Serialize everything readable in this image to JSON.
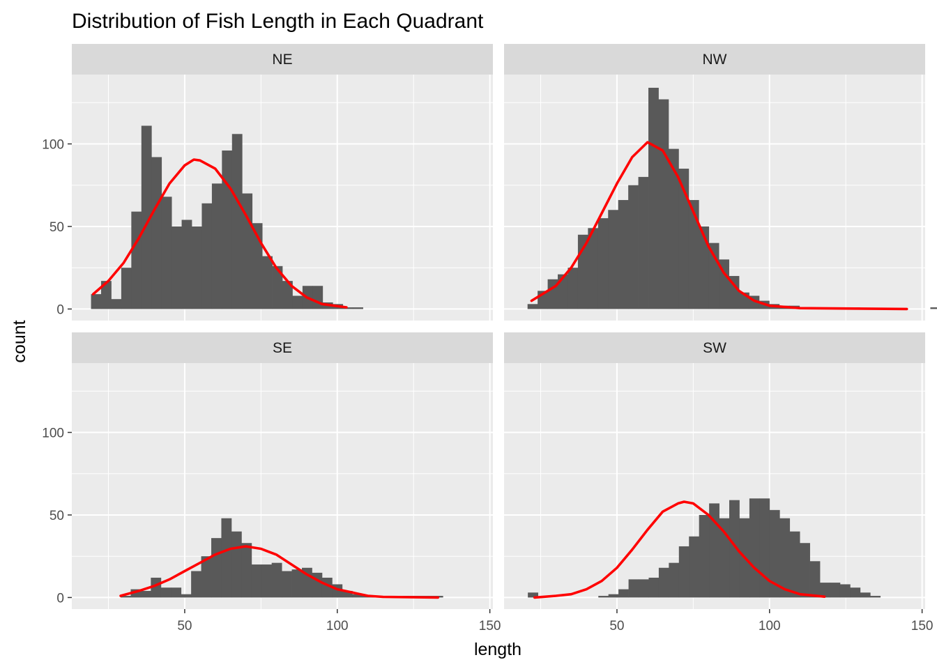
{
  "chart_data": {
    "type": "histogram",
    "title": "Distribution of Fish Length in Each Quadrant",
    "xlabel": "length",
    "ylabel": "count",
    "xlim": [
      13,
      151
    ],
    "ylim": [
      -7,
      142
    ],
    "x_ticks": [
      50,
      100,
      150
    ],
    "x_tick_labels": [
      "50",
      "100",
      "150"
    ],
    "y_ticks": [
      0,
      50,
      100
    ],
    "y_tick_labels": [
      "0",
      "50",
      "100"
    ],
    "bin_width": 3.3,
    "colors": {
      "panel_background": "#ebebeb",
      "strip_background": "#d9d9d9",
      "bar": "#595959",
      "curve": "#ff0000",
      "grid": "#ffffff"
    },
    "facets": [
      {
        "label": "NE",
        "bin_start": 19.3,
        "counts": [
          9,
          17,
          6,
          25,
          59,
          111,
          92,
          68,
          50,
          54,
          50,
          64,
          76,
          96,
          106,
          70,
          52,
          32,
          26,
          17,
          8,
          14,
          14,
          4,
          3,
          1,
          1
        ],
        "curve": [
          [
            20,
            9
          ],
          [
            25,
            17
          ],
          [
            30,
            28
          ],
          [
            35,
            43
          ],
          [
            40,
            60
          ],
          [
            45,
            76
          ],
          [
            50,
            87
          ],
          [
            53,
            90.5
          ],
          [
            55,
            90
          ],
          [
            60,
            85
          ],
          [
            65,
            73
          ],
          [
            70,
            57
          ],
          [
            75,
            40
          ],
          [
            80,
            25
          ],
          [
            85,
            14
          ],
          [
            90,
            7
          ],
          [
            95,
            3
          ],
          [
            103,
            1
          ]
        ]
      },
      {
        "label": "NW",
        "bin_start": 20.7,
        "counts": [
          3,
          11,
          18,
          21,
          25,
          45,
          49,
          55,
          60,
          66,
          75,
          80,
          134,
          127,
          97,
          85,
          66,
          50,
          40,
          30,
          20,
          10,
          8,
          5,
          3,
          2,
          2,
          1,
          1,
          1,
          1,
          1,
          1,
          0,
          0,
          0,
          0,
          0,
          0,
          0,
          1
        ],
        "curve": [
          [
            22,
            5
          ],
          [
            30,
            14
          ],
          [
            35,
            25
          ],
          [
            40,
            40
          ],
          [
            45,
            58
          ],
          [
            50,
            76
          ],
          [
            55,
            92
          ],
          [
            60,
            101
          ],
          [
            65,
            96
          ],
          [
            70,
            80
          ],
          [
            75,
            59
          ],
          [
            80,
            38
          ],
          [
            85,
            22
          ],
          [
            90,
            11
          ],
          [
            95,
            5
          ],
          [
            100,
            2
          ],
          [
            110,
            0.5
          ],
          [
            145,
            0
          ]
        ]
      },
      {
        "label": "SE",
        "bin_start": 29.0,
        "counts": [
          1,
          5,
          4,
          12,
          6,
          6,
          2,
          16,
          25,
          36,
          48,
          40,
          33,
          20,
          20,
          21,
          16,
          17,
          18,
          15,
          12,
          8,
          4,
          2,
          1,
          1,
          1,
          1,
          1,
          1,
          1,
          1
        ],
        "curve": [
          [
            29,
            1
          ],
          [
            35,
            4
          ],
          [
            40,
            7
          ],
          [
            45,
            11
          ],
          [
            50,
            16
          ],
          [
            55,
            21
          ],
          [
            60,
            26
          ],
          [
            65,
            29.5
          ],
          [
            70,
            31
          ],
          [
            75,
            29.5
          ],
          [
            80,
            26
          ],
          [
            85,
            20
          ],
          [
            90,
            14
          ],
          [
            95,
            9
          ],
          [
            100,
            5
          ],
          [
            105,
            3
          ],
          [
            110,
            1
          ],
          [
            115,
            0.4
          ],
          [
            133,
            0
          ]
        ]
      },
      {
        "label": "SW",
        "bin_start": 20.8,
        "counts": [
          3,
          0,
          0,
          0,
          0,
          0,
          0,
          1,
          2,
          5,
          11,
          11,
          12,
          18,
          21,
          31,
          37,
          50,
          57,
          48,
          59,
          48,
          60,
          60,
          53,
          48,
          40,
          33,
          22,
          9,
          9,
          8,
          6,
          3,
          1
        ],
        "curve": [
          [
            23,
            0
          ],
          [
            30,
            1
          ],
          [
            35,
            2
          ],
          [
            40,
            5
          ],
          [
            45,
            10
          ],
          [
            50,
            18
          ],
          [
            55,
            29
          ],
          [
            60,
            41
          ],
          [
            65,
            52
          ],
          [
            70,
            57
          ],
          [
            72,
            58
          ],
          [
            75,
            57
          ],
          [
            80,
            50
          ],
          [
            85,
            40
          ],
          [
            90,
            28
          ],
          [
            95,
            18
          ],
          [
            100,
            10
          ],
          [
            105,
            5
          ],
          [
            110,
            2
          ],
          [
            118,
            0.5
          ]
        ]
      }
    ]
  }
}
